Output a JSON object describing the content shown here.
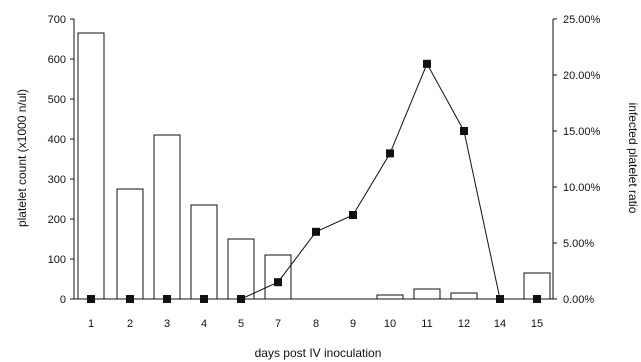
{
  "chart_data": {
    "type": "bar",
    "categories": [
      "1",
      "2",
      "3",
      "4",
      "5",
      "7",
      "8",
      "9",
      "10",
      "11",
      "12",
      "14",
      "15"
    ],
    "xlabel": "days post IV inoculation",
    "ylabel": "platelet count (x1000 n/ul)",
    "y2label": "infected platelet ratio",
    "ylim": [
      0,
      700
    ],
    "y2lim": [
      0,
      0.25
    ],
    "yticks": [
      "0",
      "100",
      "200",
      "300",
      "400",
      "500",
      "600",
      "700"
    ],
    "y2ticks": [
      "0.00%",
      "5.00%",
      "10.00%",
      "15.00%",
      "20.00%",
      "25.00%"
    ],
    "grid": false,
    "series": [
      {
        "type": "bar",
        "axis": "left",
        "values": [
          665,
          275,
          410,
          235,
          150,
          110,
          0,
          0,
          10,
          25,
          15,
          0,
          65
        ]
      },
      {
        "type": "line",
        "axis": "right",
        "values": [
          0,
          0,
          0,
          0,
          0,
          0.015,
          0.06,
          0.075,
          0.13,
          0.21,
          0.15,
          0,
          0
        ]
      }
    ]
  }
}
